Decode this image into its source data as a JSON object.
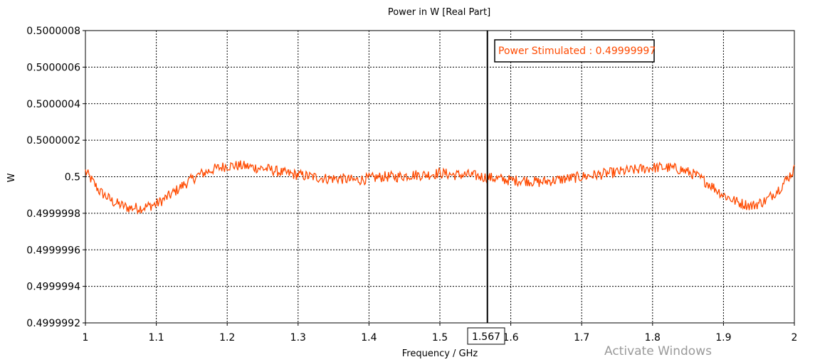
{
  "chart_data": {
    "type": "line",
    "title": "Power in W [Real Part]",
    "xlabel": "Frequency / GHz",
    "ylabel": "W",
    "xlim": [
      1,
      2
    ],
    "ylim": [
      0.4999992,
      0.5000008
    ],
    "x_ticks": [
      "1",
      "1.1",
      "1.2",
      "1.3",
      "1.4",
      "1.5",
      "1.6",
      "1.7",
      "1.8",
      "1.9",
      "2"
    ],
    "y_ticks": [
      "0.4999992",
      "0.4999994",
      "0.4999996",
      "0.4999998",
      "0.5",
      "0.5000002",
      "0.5000004",
      "0.5000006",
      "0.5000008"
    ],
    "grid": true,
    "series": [
      {
        "color": "#ff4a00",
        "x": [
          1.0,
          1.02,
          1.04,
          1.06,
          1.08,
          1.1,
          1.12,
          1.14,
          1.16,
          1.18,
          1.2,
          1.22,
          1.24,
          1.26,
          1.28,
          1.3,
          1.32,
          1.34,
          1.36,
          1.38,
          1.4,
          1.42,
          1.44,
          1.46,
          1.48,
          1.5,
          1.52,
          1.54,
          1.56,
          1.58,
          1.6,
          1.62,
          1.64,
          1.66,
          1.68,
          1.7,
          1.72,
          1.74,
          1.76,
          1.78,
          1.8,
          1.82,
          1.84,
          1.86,
          1.88,
          1.9,
          1.92,
          1.94,
          1.96,
          1.98,
          2.0
        ],
        "y": [
          0.50000003,
          0.49999992,
          0.49999986,
          0.49999983,
          0.49999983,
          0.49999985,
          0.4999999,
          0.49999996,
          0.50000001,
          0.50000004,
          0.50000006,
          0.50000006,
          0.50000005,
          0.50000004,
          0.50000002,
          0.50000001,
          0.5,
          0.49999999,
          0.49999999,
          0.49999998,
          0.49999999,
          0.5,
          0.5,
          0.50000001,
          0.50000001,
          0.50000002,
          0.50000001,
          0.50000001,
          0.5,
          0.49999999,
          0.49999998,
          0.49999998,
          0.49999997,
          0.49999998,
          0.49999999,
          0.5,
          0.50000001,
          0.50000002,
          0.50000003,
          0.50000004,
          0.50000005,
          0.50000005,
          0.50000004,
          0.50000001,
          0.49999996,
          0.4999999,
          0.49999986,
          0.49999984,
          0.49999987,
          0.49999994,
          0.50000004
        ]
      }
    ],
    "marker": {
      "x": 1.567,
      "label": "1.567",
      "color": "#000000"
    },
    "annotation": {
      "text": "Power Stimulated : 0.49999997",
      "color": "#ff4a00"
    }
  },
  "watermark": "Activate Windows"
}
